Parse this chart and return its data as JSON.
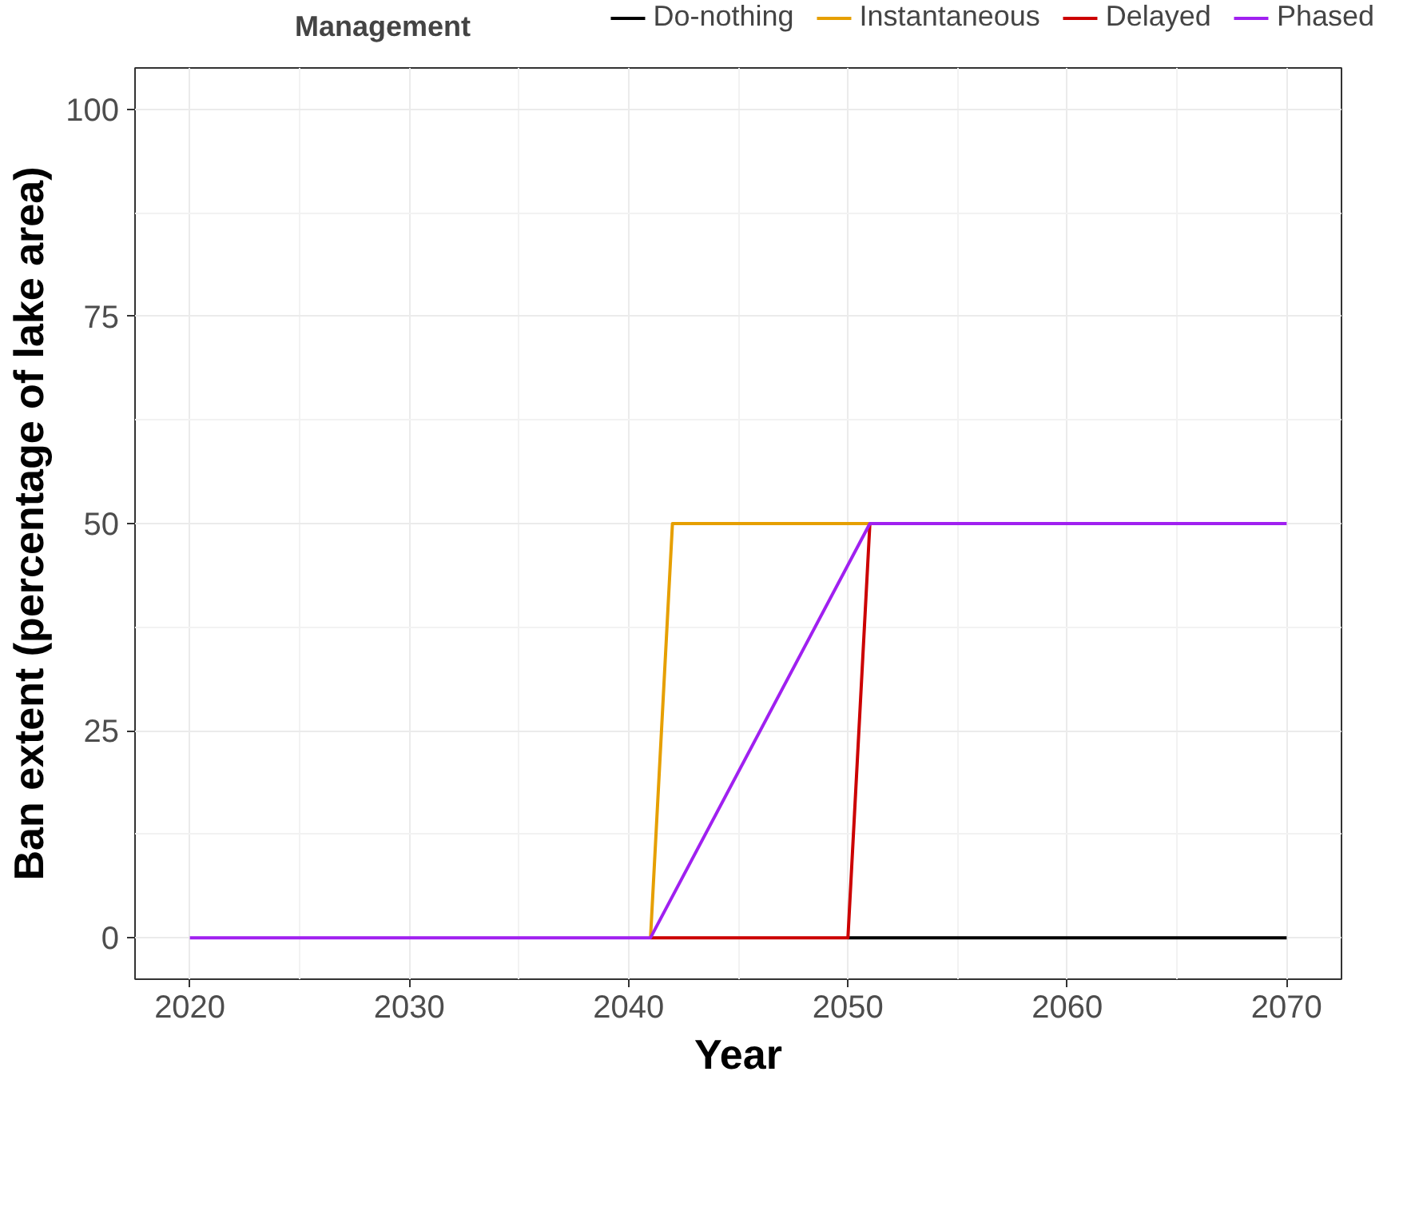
{
  "chart_data": {
    "type": "line",
    "xlabel": "Year",
    "ylabel": "Ban extent (percentage of lake area)",
    "legend_title": "Management",
    "xlim": [
      2017.5,
      2072.5
    ],
    "ylim": [
      -5,
      105
    ],
    "xticks": [
      2020,
      2030,
      2040,
      2050,
      2060,
      2070
    ],
    "yticks": [
      0,
      25,
      50,
      75,
      100
    ],
    "grid": true,
    "legend": "top",
    "line_style": "solid",
    "series": [
      {
        "name": "Do-nothing",
        "color": "#000000",
        "x": [
          2050,
          2070
        ],
        "values": [
          0,
          0
        ]
      },
      {
        "name": "Instantaneous",
        "color": "#e69f00",
        "x": [
          2041,
          2042,
          2051
        ],
        "values": [
          0,
          50,
          50
        ]
      },
      {
        "name": "Delayed",
        "color": "#cc0000",
        "x": [
          2041,
          2050,
          2051
        ],
        "values": [
          0,
          0,
          50
        ]
      },
      {
        "name": "Phased",
        "color": "#a020f0",
        "x": [
          2020,
          2041,
          2051,
          2070
        ],
        "values": [
          0,
          0,
          50,
          50
        ]
      }
    ]
  }
}
